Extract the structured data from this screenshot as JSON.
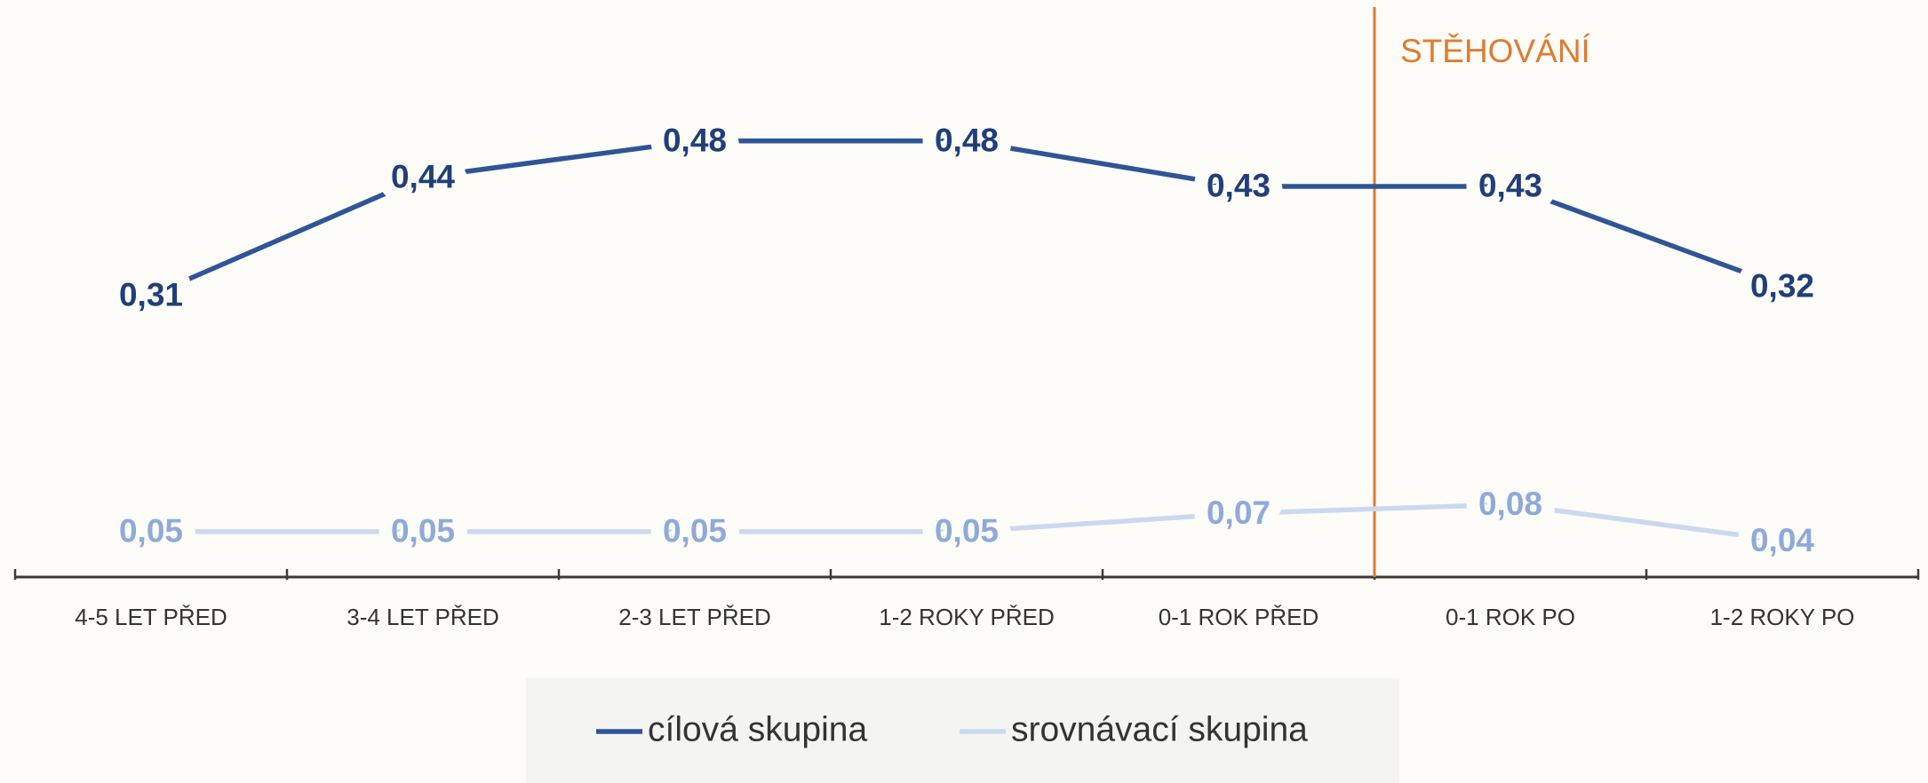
{
  "chart_data": {
    "type": "line",
    "categories": [
      "4-5 LET PŘED",
      "3-4 LET PŘED",
      "2-3 LET PŘED",
      "1-2 ROKY PŘED",
      "0-1 ROK PŘED",
      "0-1 ROK PO",
      "1-2 ROKY PO"
    ],
    "series": [
      {
        "name": "cílová skupina",
        "color": "#2f5597",
        "label_color": "#203f7a",
        "values": [
          0.31,
          0.44,
          0.48,
          0.48,
          0.43,
          0.43,
          0.32
        ],
        "value_labels": [
          "0,31",
          "0,44",
          "0,48",
          "0,48",
          "0,43",
          "0,43",
          "0,32"
        ]
      },
      {
        "name": "srovnávací skupina",
        "color": "#cbd9f0",
        "label_color": "#8eaadb",
        "values": [
          0.05,
          0.05,
          0.05,
          0.05,
          0.07,
          0.08,
          0.04
        ],
        "value_labels": [
          "0,05",
          "0,05",
          "0,05",
          "0,05",
          "0,07",
          "0,08",
          "0,04"
        ]
      }
    ],
    "ylim": [
      0,
      0.6
    ],
    "annotation": {
      "text": "STĚHOVÁNÍ",
      "color": "#e07b2f"
    },
    "legend": "bottom"
  }
}
